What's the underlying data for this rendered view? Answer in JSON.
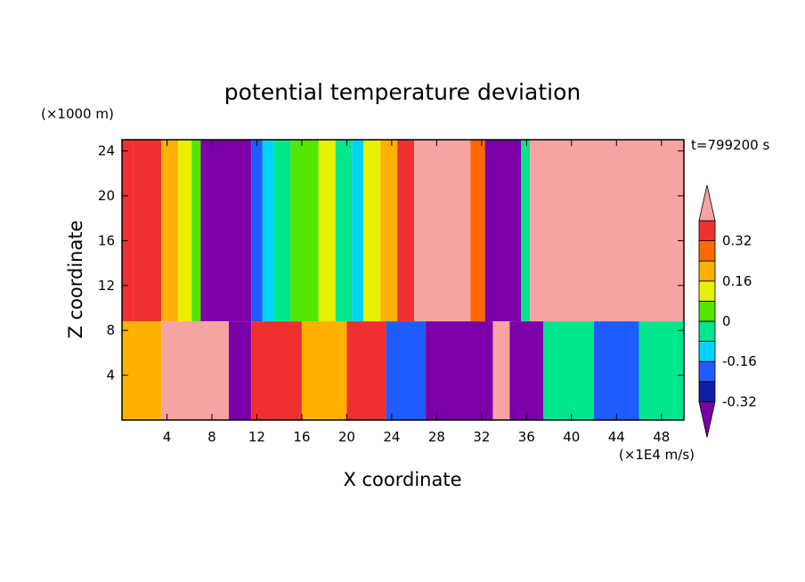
{
  "chart_data": {
    "type": "heatmap",
    "title": "potential temperature deviation",
    "xlabel": "X coordinate",
    "ylabel": "Z coordinate",
    "x_unit": "(×1E4 m/s)",
    "y_unit": "(×1000 m)",
    "time_label": "t=799200 s",
    "xlim": [
      0,
      50
    ],
    "ylim": [
      0,
      25
    ],
    "x_ticks": [
      4,
      8,
      12,
      16,
      20,
      24,
      28,
      32,
      36,
      40,
      44,
      48
    ],
    "y_ticks": [
      4,
      8,
      12,
      16,
      20,
      24
    ],
    "x_tick_labels": [
      "4",
      "8",
      "12",
      "16",
      "20",
      "24",
      "28",
      "32",
      "36",
      "40",
      "44",
      "48"
    ],
    "y_tick_labels": [
      "4",
      "8",
      "12",
      "16",
      "20",
      "24"
    ],
    "colorbar": {
      "colors": [
        "#7b00a8",
        "#0f1da8",
        "#1e5cff",
        "#00d2ff",
        "#00e68a",
        "#52e600",
        "#e6f000",
        "#ffb000",
        "#ff6a00",
        "#f03030",
        "#f5a3a3"
      ],
      "tick_labels": [
        "-0.32",
        "-0.16",
        "0",
        "0.16",
        "0.32"
      ],
      "tick_values": [
        -0.32,
        -0.16,
        0,
        0.16,
        0.32
      ],
      "levels": [
        -0.4,
        -0.32,
        -0.24,
        -0.16,
        -0.08,
        0,
        0.08,
        0.16,
        0.24,
        0.32,
        0.4
      ]
    },
    "upper_layer_columns": [
      {
        "x0": 0.0,
        "x1": 1.0,
        "value": 0.3
      },
      {
        "x0": 1.0,
        "x1": 3.5,
        "value": 0.25
      },
      {
        "x0": 3.5,
        "x1": 5.0,
        "value": 0.1
      },
      {
        "x0": 5.0,
        "x1": 6.2,
        "value": 0.02
      },
      {
        "x0": 6.2,
        "x1": 7.0,
        "value": -0.06
      },
      {
        "x0": 7.0,
        "x1": 11.5,
        "value": -0.45
      },
      {
        "x0": 11.5,
        "x1": 12.5,
        "value": -0.3
      },
      {
        "x0": 12.5,
        "x1": 13.5,
        "value": -0.18
      },
      {
        "x0": 13.5,
        "x1": 15.0,
        "value": -0.1
      },
      {
        "x0": 15.0,
        "x1": 17.5,
        "value": -0.05
      },
      {
        "x0": 17.5,
        "x1": 19.0,
        "value": 0.0
      },
      {
        "x0": 19.0,
        "x1": 20.5,
        "value": -0.12
      },
      {
        "x0": 20.5,
        "x1": 21.5,
        "value": -0.2
      },
      {
        "x0": 21.5,
        "x1": 23.0,
        "value": 0.05
      },
      {
        "x0": 23.0,
        "x1": 24.5,
        "value": 0.15
      },
      {
        "x0": 24.5,
        "x1": 26.0,
        "value": 0.25
      },
      {
        "x0": 26.0,
        "x1": 31.0,
        "value": 0.38
      },
      {
        "x0": 31.0,
        "x1": 32.3,
        "value": 0.2
      },
      {
        "x0": 32.3,
        "x1": 35.5,
        "value": -0.45
      },
      {
        "x0": 35.5,
        "x1": 36.3,
        "value": -0.1
      },
      {
        "x0": 36.3,
        "x1": 38.5,
        "value": 0.38
      },
      {
        "x0": 38.5,
        "x1": 46.0,
        "value": 0.33
      },
      {
        "x0": 46.0,
        "x1": 50.0,
        "value": 0.38
      }
    ],
    "lower_layer_columns": [
      {
        "x0": 0.0,
        "x1": 3.5,
        "value": 0.1
      },
      {
        "x0": 3.5,
        "x1": 6.5,
        "value": 0.38
      },
      {
        "x0": 6.5,
        "x1": 9.5,
        "value": 0.4
      },
      {
        "x0": 9.5,
        "x1": 11.5,
        "value": -0.45
      },
      {
        "x0": 11.5,
        "x1": 16.0,
        "value": 0.3
      },
      {
        "x0": 16.0,
        "x1": 20.0,
        "value": 0.1
      },
      {
        "x0": 20.0,
        "x1": 23.5,
        "value": 0.25
      },
      {
        "x0": 23.5,
        "x1": 27.0,
        "value": -0.25
      },
      {
        "x0": 27.0,
        "x1": 33.0,
        "value": -0.45
      },
      {
        "x0": 33.0,
        "x1": 34.5,
        "value": 0.38
      },
      {
        "x0": 34.5,
        "x1": 37.5,
        "value": -0.45
      },
      {
        "x0": 37.5,
        "x1": 42.0,
        "value": -0.1
      },
      {
        "x0": 42.0,
        "x1": 46.0,
        "value": -0.3
      },
      {
        "x0": 46.0,
        "x1": 50.0,
        "value": -0.15
      }
    ],
    "layer_boundary_z": 8.8
  }
}
